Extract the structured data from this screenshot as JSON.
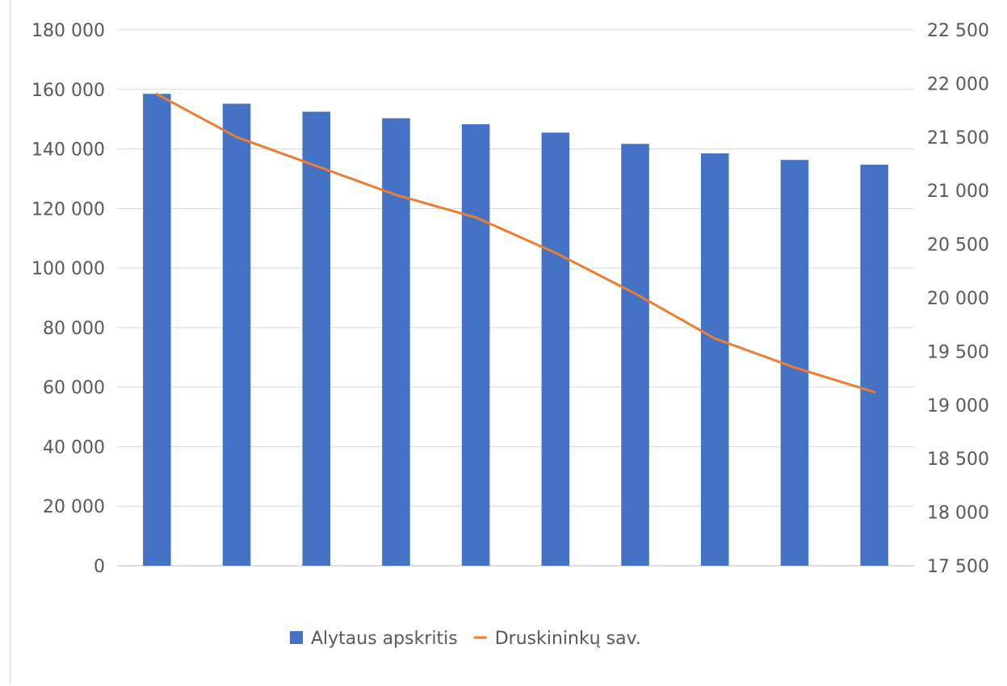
{
  "chart_data": {
    "type": "bar",
    "categories": [
      "",
      "",
      "",
      "",
      "",
      "",
      "",
      "",
      "",
      ""
    ],
    "series": [
      {
        "name": "Alytaus apskritis",
        "type": "bar",
        "axis": "left",
        "color": "#4472c4",
        "values": [
          158500,
          155200,
          152500,
          150300,
          148300,
          145500,
          141700,
          138500,
          136300,
          134700
        ]
      },
      {
        "name": "Druskininkų sav.",
        "type": "line",
        "axis": "right",
        "color": "#ed7d31",
        "values": [
          21900,
          21500,
          21230,
          20960,
          20750,
          20420,
          20040,
          19620,
          19350,
          19120
        ]
      }
    ],
    "y_left": {
      "range": [
        0,
        180000
      ],
      "ticks": [
        0,
        20000,
        40000,
        60000,
        80000,
        100000,
        120000,
        140000,
        160000,
        180000
      ],
      "tick_labels": [
        "0",
        "20 000",
        "40 000",
        "60 000",
        "80 000",
        "100 000",
        "120 000",
        "140 000",
        "160 000",
        "180 000"
      ]
    },
    "y_right": {
      "range": [
        17500,
        22500
      ],
      "ticks": [
        17500,
        18000,
        18500,
        19000,
        19500,
        20000,
        20500,
        21000,
        21500,
        22000,
        22500
      ],
      "tick_labels": [
        "17 500",
        "18 000",
        "18 500",
        "19 000",
        "19 500",
        "20 000",
        "20 500",
        "21 000",
        "21 500",
        "22 000",
        "22 500"
      ]
    },
    "grid": true,
    "legend": "bottom",
    "gridline_color": "#d9d9d9",
    "axis_line_color": "#bfbfbf"
  }
}
